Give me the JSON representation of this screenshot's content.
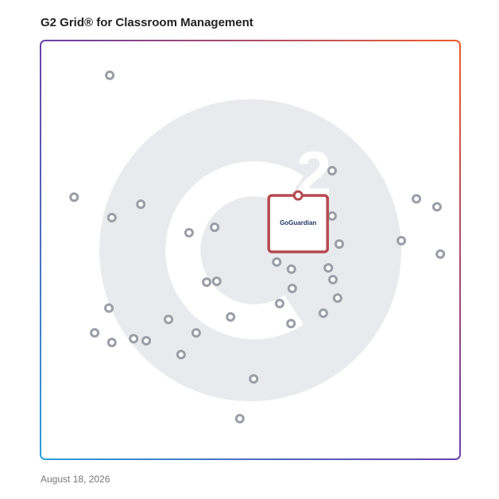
{
  "chart_data": {
    "type": "scatter",
    "title": "G2 Grid® for Classroom Management",
    "date": "August 18, 2026",
    "xlim": [
      0,
      100
    ],
    "ylim": [
      0,
      100
    ],
    "x": [
      16.5,
      8.0,
      17.0,
      23.9,
      35.4,
      41.5,
      69.5,
      89.6,
      94.5,
      69.5,
      71.2,
      86.0,
      95.3,
      56.3,
      59.8,
      68.6,
      69.7,
      39.6,
      42.0,
      60.0,
      57.0,
      70.8,
      16.3,
      30.5,
      45.3,
      67.4,
      59.7,
      12.9,
      17.0,
      22.2,
      25.2,
      37.1,
      33.5,
      50.8,
      47.5
    ],
    "y": [
      91.7,
      62.6,
      57.7,
      60.9,
      54.1,
      55.4,
      68.9,
      62.2,
      60.3,
      58.1,
      51.4,
      52.2,
      49.0,
      47.1,
      45.4,
      45.7,
      42.9,
      42.3,
      42.5,
      40.8,
      37.2,
      38.5,
      36.1,
      33.4,
      34.0,
      34.9,
      32.4,
      30.2,
      27.9,
      28.8,
      28.3,
      30.2,
      25.0,
      19.2,
      9.7
    ],
    "color": "#9a9ea6",
    "highlight": {
      "label": "GoGuardian",
      "x": 61.4,
      "y": 63.0,
      "color": "#b5494e"
    }
  }
}
